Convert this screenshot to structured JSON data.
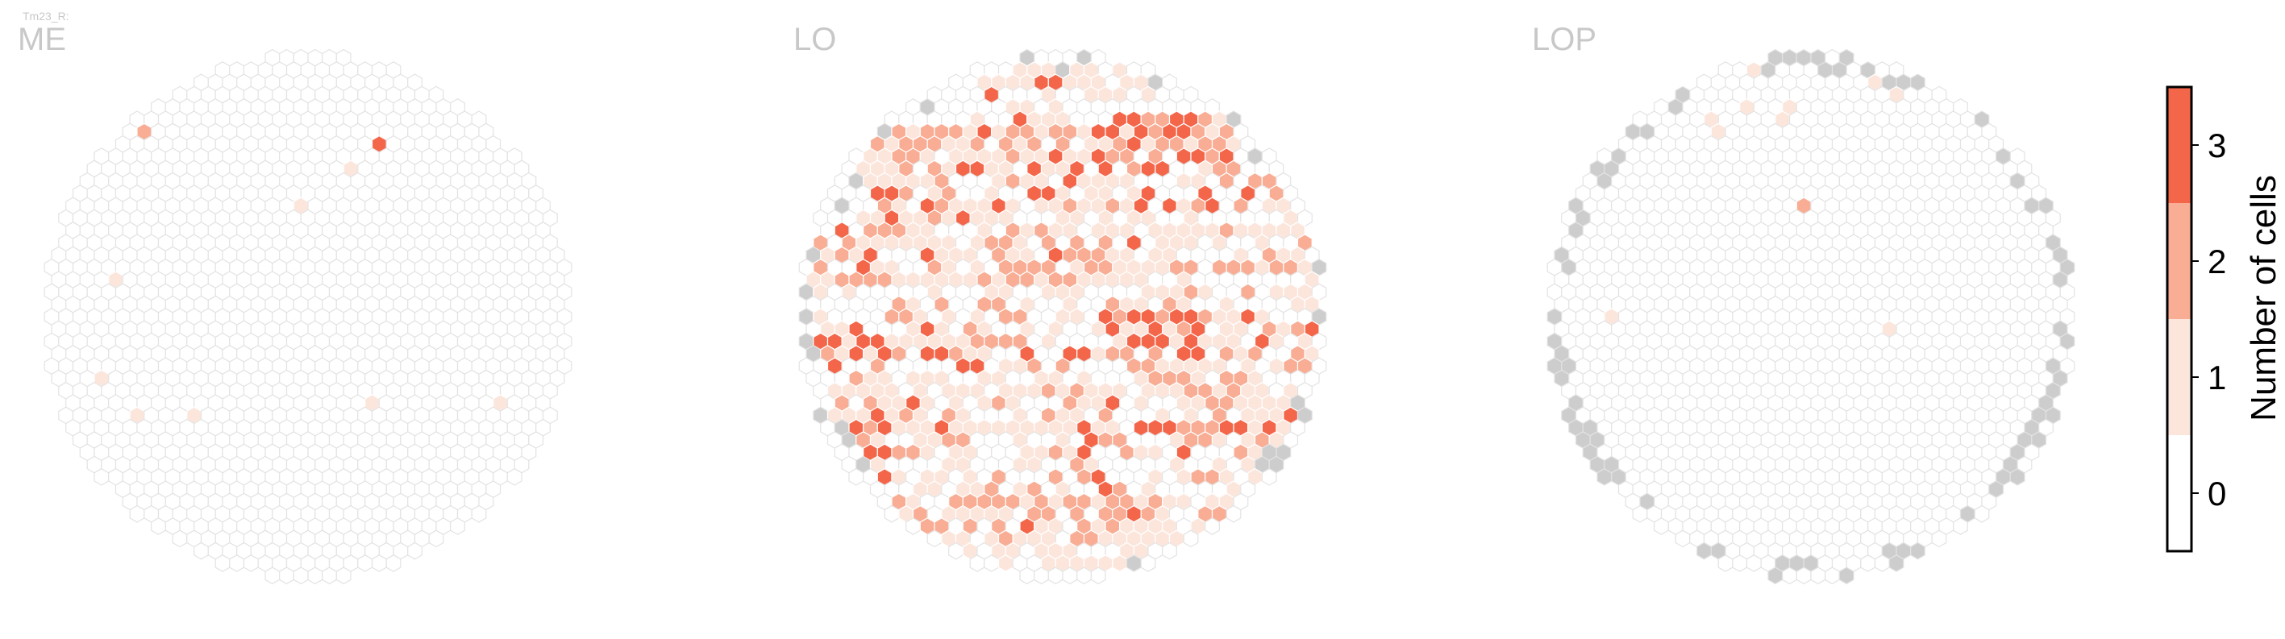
{
  "cell_type_label": "Tm23_R:",
  "chart_data": {
    "type": "heatmap",
    "description_kind": "hexagonal column map",
    "panels": [
      {
        "name": "ME",
        "n_edge_no_data": 0,
        "cell_counts": {
          "1": 8,
          "2": 1,
          "3": 1
        }
      },
      {
        "name": "LO",
        "n_edge_no_data": 28,
        "cell_counts": {
          "1": 440,
          "2": 215,
          "3": 105
        }
      },
      {
        "name": "LOP",
        "n_edge_no_data": 80,
        "cell_counts": {
          "1": 10,
          "2": 1,
          "3": 0
        }
      }
    ],
    "colorbar": {
      "label": "Number of cells",
      "ticks": [
        "0",
        "1",
        "2",
        "3"
      ],
      "range": [
        0,
        3
      ],
      "colors": {
        "0": "#ffffff",
        "1": "#fce6dc",
        "2": "#f8ad94",
        "3": "#f4664a"
      }
    },
    "colors": {
      "no_data": "#cdcdcd",
      "hex_outline": "#e3e3e3"
    }
  }
}
